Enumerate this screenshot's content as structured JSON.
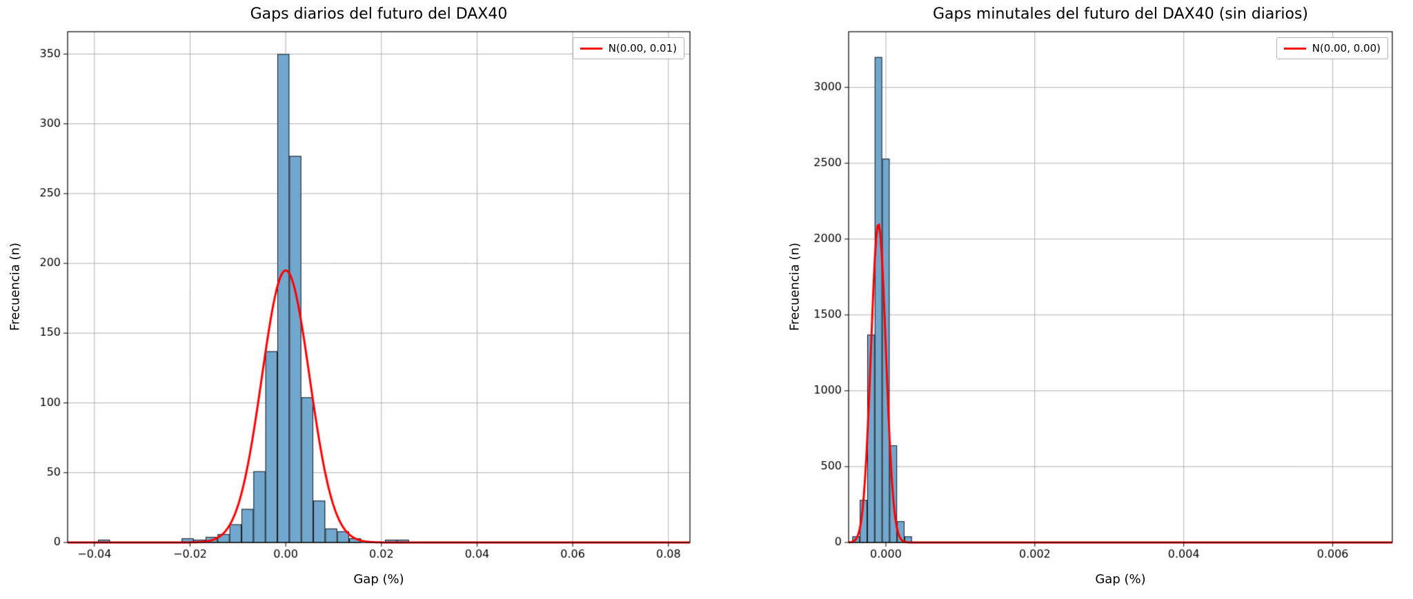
{
  "figure": {
    "background": "#ffffff"
  },
  "chart_data": [
    {
      "type": "bar",
      "subtype": "histogram",
      "title": "Gaps diarios del futuro del DAX40",
      "xlabel": "Gap (%)",
      "ylabel": "Frecuencia (n)",
      "legend": {
        "label": "N(0.00, 0.01)",
        "color": "#ff0000",
        "position": "upper right"
      },
      "grid": true,
      "xlim": [
        -0.0456,
        0.0845
      ],
      "ylim": [
        0,
        366
      ],
      "xticks": {
        "values": [
          -0.04,
          -0.02,
          0.0,
          0.02,
          0.04,
          0.06,
          0.08
        ],
        "labels": [
          "−0.04",
          "−0.02",
          "0.00",
          "0.02",
          "0.04",
          "0.06",
          "0.08"
        ]
      },
      "yticks": {
        "values": [
          0,
          50,
          100,
          150,
          200,
          250,
          300,
          350
        ],
        "labels": [
          "0",
          "50",
          "100",
          "150",
          "200",
          "250",
          "300",
          "350"
        ]
      },
      "bar_color": "#72a8ce",
      "bar_edge_color": "#1c1c1c",
      "bin_width": 0.0025,
      "bars": [
        [
          -0.03925,
          2
        ],
        [
          -0.02175,
          3
        ],
        [
          -0.01925,
          2
        ],
        [
          -0.01675,
          4
        ],
        [
          -0.01425,
          6
        ],
        [
          -0.01175,
          13
        ],
        [
          -0.00925,
          24
        ],
        [
          -0.00675,
          51
        ],
        [
          -0.00425,
          137
        ],
        [
          -0.00175,
          350
        ],
        [
          0.00075,
          277
        ],
        [
          0.00325,
          104
        ],
        [
          0.00575,
          30
        ],
        [
          0.00825,
          10
        ],
        [
          0.01075,
          8
        ],
        [
          0.01325,
          3
        ],
        [
          0.02075,
          2
        ],
        [
          0.02325,
          2
        ]
      ],
      "curve": {
        "mu": 0.0,
        "sigma": 0.005,
        "peak": 195,
        "color": "#ff0000"
      }
    },
    {
      "type": "bar",
      "subtype": "histogram",
      "title": "Gaps minutales del futuro del DAX40 (sin diarios)",
      "xlabel": "Gap (%)",
      "ylabel": "Frecuencia (n)",
      "legend": {
        "label": "N(0.00, 0.00)",
        "color": "#ff0000",
        "position": "upper right"
      },
      "grid": true,
      "xlim": [
        -0.0005,
        0.0068
      ],
      "ylim": [
        0,
        3367
      ],
      "xticks": {
        "values": [
          0.0,
          0.002,
          0.004,
          0.006
        ],
        "labels": [
          "0.000",
          "0.002",
          "0.004",
          "0.006"
        ]
      },
      "yticks": {
        "values": [
          0,
          500,
          1000,
          1500,
          2000,
          2500,
          3000
        ],
        "labels": [
          "0",
          "500",
          "1000",
          "1500",
          "2000",
          "2500",
          "3000"
        ]
      },
      "bar_color": "#72a8ce",
      "bar_edge_color": "#1c1c1c",
      "bin_width": 0.0001,
      "bars": [
        [
          -0.00045,
          40
        ],
        [
          -0.00035,
          280
        ],
        [
          -0.00025,
          1370
        ],
        [
          -0.00015,
          3200
        ],
        [
          -5e-05,
          2530
        ],
        [
          5e-05,
          640
        ],
        [
          0.00015,
          140
        ],
        [
          0.00025,
          40
        ]
      ],
      "curve": {
        "mu": -0.0001,
        "sigma": 0.0001,
        "peak": 2100,
        "color": "#ff0000"
      }
    }
  ]
}
